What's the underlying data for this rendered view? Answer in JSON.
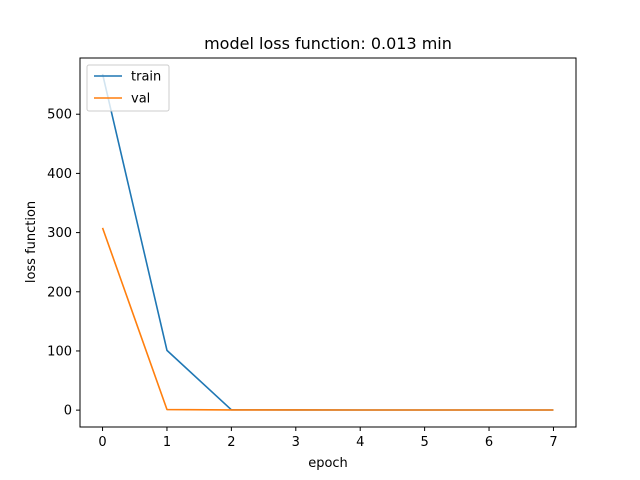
{
  "chart_data": {
    "type": "line",
    "title": "model loss function: 0.013 min",
    "xlabel": "epoch",
    "ylabel": "loss function",
    "x": [
      0,
      1,
      2,
      3,
      4,
      5,
      6,
      7
    ],
    "xlim": [
      -0.35,
      7.35
    ],
    "ylim": [
      -28.5,
      595
    ],
    "xticks": [
      0,
      1,
      2,
      3,
      4,
      5,
      6,
      7
    ],
    "yticks": [
      0,
      100,
      200,
      300,
      400,
      500
    ],
    "grid": false,
    "legend": "upper left",
    "series": [
      {
        "name": "train",
        "color": "#1f77b4",
        "values": [
          568,
          101,
          0.5,
          0.3,
          0.2,
          0.2,
          0.2,
          0.2
        ]
      },
      {
        "name": "val",
        "color": "#ff7f0e",
        "values": [
          308,
          1,
          0.4,
          0.3,
          0.2,
          0.2,
          0.2,
          0.2
        ]
      }
    ]
  }
}
